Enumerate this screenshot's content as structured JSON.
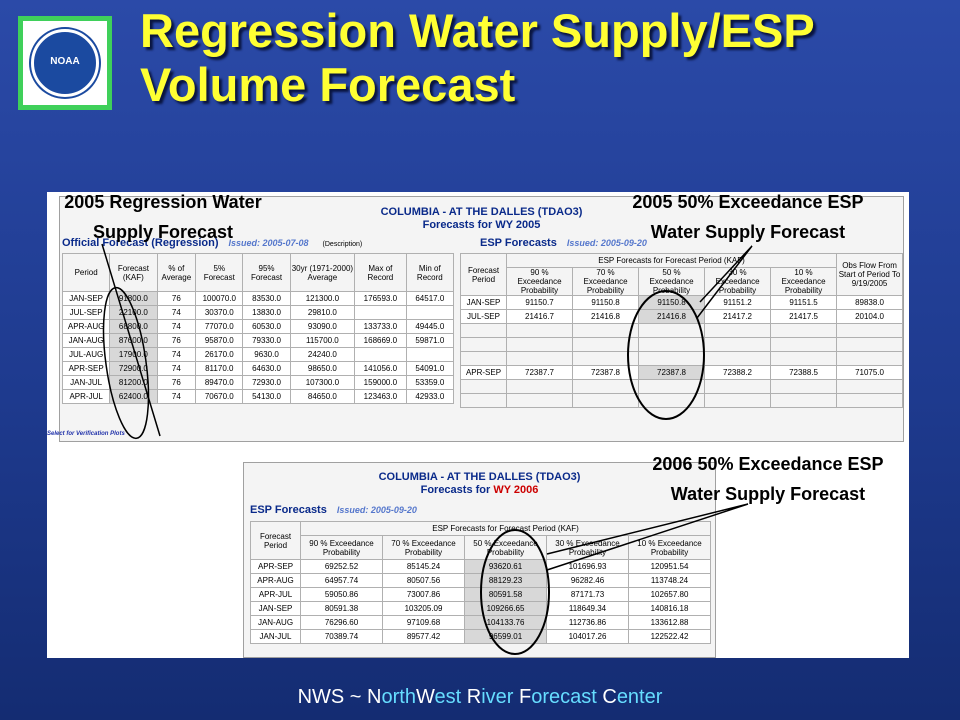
{
  "slide": {
    "title_line1": "Regression Water Supply/ESP",
    "title_line2": "Volume Forecast",
    "logo_text": "NOAA"
  },
  "footer": {
    "nws": "NWS ~ ",
    "n": "N",
    "orth": "orth",
    "w": "W",
    "est": "est ",
    "r": "R",
    "iver": "iver ",
    "f": "F",
    "orecast": "orecast ",
    "c": "C",
    "enter": "enter"
  },
  "callouts": {
    "regression_2005_l1": "2005 Regression Water",
    "regression_2005_l2": "Supply Forecast",
    "esp_2005_l1": "2005 50% Exceedance ESP",
    "esp_2005_l2": "Water Supply Forecast",
    "esp_2006_l1": "2006 50% Exceedance ESP",
    "esp_2006_l2": "Water Supply Forecast"
  },
  "top_frame": {
    "title_l1": "COLUMBIA - AT THE DALLES (TDAO3)",
    "title_l2": "Forecasts for WY 2005",
    "official": {
      "heading": "Official Forecast (Regression)",
      "issued": "Issued: 2005-07-08",
      "desc": "(Description)",
      "headers": [
        "Period",
        "Forecast (KAF)",
        "% of Average",
        "5% Forecast",
        "95% Forecast",
        "30yr (1971-2000) Average",
        "Max of Record",
        "Min of Record"
      ],
      "rows": [
        [
          "JAN-SEP",
          "91800.0",
          "76",
          "100070.0",
          "83530.0",
          "121300.0",
          "176593.0",
          "64517.0"
        ],
        [
          "JUL-SEP",
          "22100.0",
          "74",
          "30370.0",
          "13830.0",
          "29810.0",
          "",
          ""
        ],
        [
          "APR-AUG",
          "68800.0",
          "74",
          "77070.0",
          "60530.0",
          "93090.0",
          "133733.0",
          "49445.0"
        ],
        [
          "JAN-AUG",
          "87600.0",
          "76",
          "95870.0",
          "79330.0",
          "115700.0",
          "168669.0",
          "59871.0"
        ],
        [
          "JUL-AUG",
          "17900.0",
          "74",
          "26170.0",
          "9630.0",
          "24240.0",
          "",
          ""
        ],
        [
          "APR-SEP",
          "72900.0",
          "74",
          "81170.0",
          "64630.0",
          "98650.0",
          "141056.0",
          "54091.0"
        ],
        [
          "JAN-JUL",
          "81200.0",
          "76",
          "89470.0",
          "72930.0",
          "107300.0",
          "159000.0",
          "53359.0"
        ],
        [
          "APR-JUL",
          "62400.0",
          "74",
          "70670.0",
          "54130.0",
          "84650.0",
          "123463.0",
          "42933.0"
        ]
      ]
    },
    "esp": {
      "heading": "ESP Forecasts",
      "issued": "Issued: 2005-09-20",
      "group_header": "ESP Forecasts for Forecast Period (KAF)",
      "headers": [
        "Forecast Period",
        "90 % Exceedance Probability",
        "70 % Exceedance Probability",
        "50 % Exceedance Probability",
        "30 % Exceedance Probability",
        "10 % Exceedance Probability",
        "Obs Flow From Start of Period To 9/19/2005"
      ],
      "rows": [
        [
          "JAN-SEP",
          "91150.7",
          "91150.8",
          "91150.8",
          "91151.2",
          "91151.5",
          "89838.0"
        ],
        [
          "JUL-SEP",
          "21416.7",
          "21416.8",
          "21416.8",
          "21417.2",
          "21417.5",
          "20104.0"
        ],
        [
          "",
          "",
          "",
          "",
          "",
          "",
          ""
        ],
        [
          "",
          "",
          "",
          "",
          "",
          "",
          ""
        ],
        [
          "",
          "",
          "",
          "",
          "",
          "",
          ""
        ],
        [
          "APR-SEP",
          "72387.7",
          "72387.8",
          "72387.8",
          "72388.2",
          "72388.5",
          "71075.0"
        ],
        [
          "",
          "",
          "",
          "",
          "",
          "",
          ""
        ],
        [
          "",
          "",
          "",
          "",
          "",
          "",
          ""
        ]
      ]
    },
    "verify_text": "Select for Verification Plots"
  },
  "bottom_frame": {
    "title_l1": "COLUMBIA - AT THE DALLES (TDAO3)",
    "title_l2_prefix": "Forecasts for ",
    "title_l2_wy": "WY 2006",
    "esp": {
      "heading": "ESP Forecasts",
      "issued": "Issued: 2005-09-20",
      "group_header": "ESP Forecasts for Forecast Period (KAF)",
      "headers": [
        "Forecast Period",
        "90 % Exceedance Probability",
        "70 % Exceedance Probability",
        "50 % Exceedance Probability",
        "30 % Exceedance Probability",
        "10 % Exceedance Probability"
      ],
      "rows": [
        [
          "APR-SEP",
          "69252.52",
          "85145.24",
          "93620.61",
          "101696.93",
          "120951.54"
        ],
        [
          "APR-AUG",
          "64957.74",
          "80507.56",
          "88129.23",
          "96282.46",
          "113748.24"
        ],
        [
          "APR-JUL",
          "59050.86",
          "73007.86",
          "80591.58",
          "87171.73",
          "102657.80"
        ],
        [
          "JAN-SEP",
          "80591.38",
          "103205.09",
          "109266.65",
          "118649.34",
          "140816.18"
        ],
        [
          "JAN-AUG",
          "76296.60",
          "97109.68",
          "104133.76",
          "112736.86",
          "133612.88"
        ],
        [
          "JAN-JUL",
          "70389.74",
          "89577.42",
          "96599.01",
          "104017.26",
          "122522.42"
        ]
      ]
    }
  }
}
